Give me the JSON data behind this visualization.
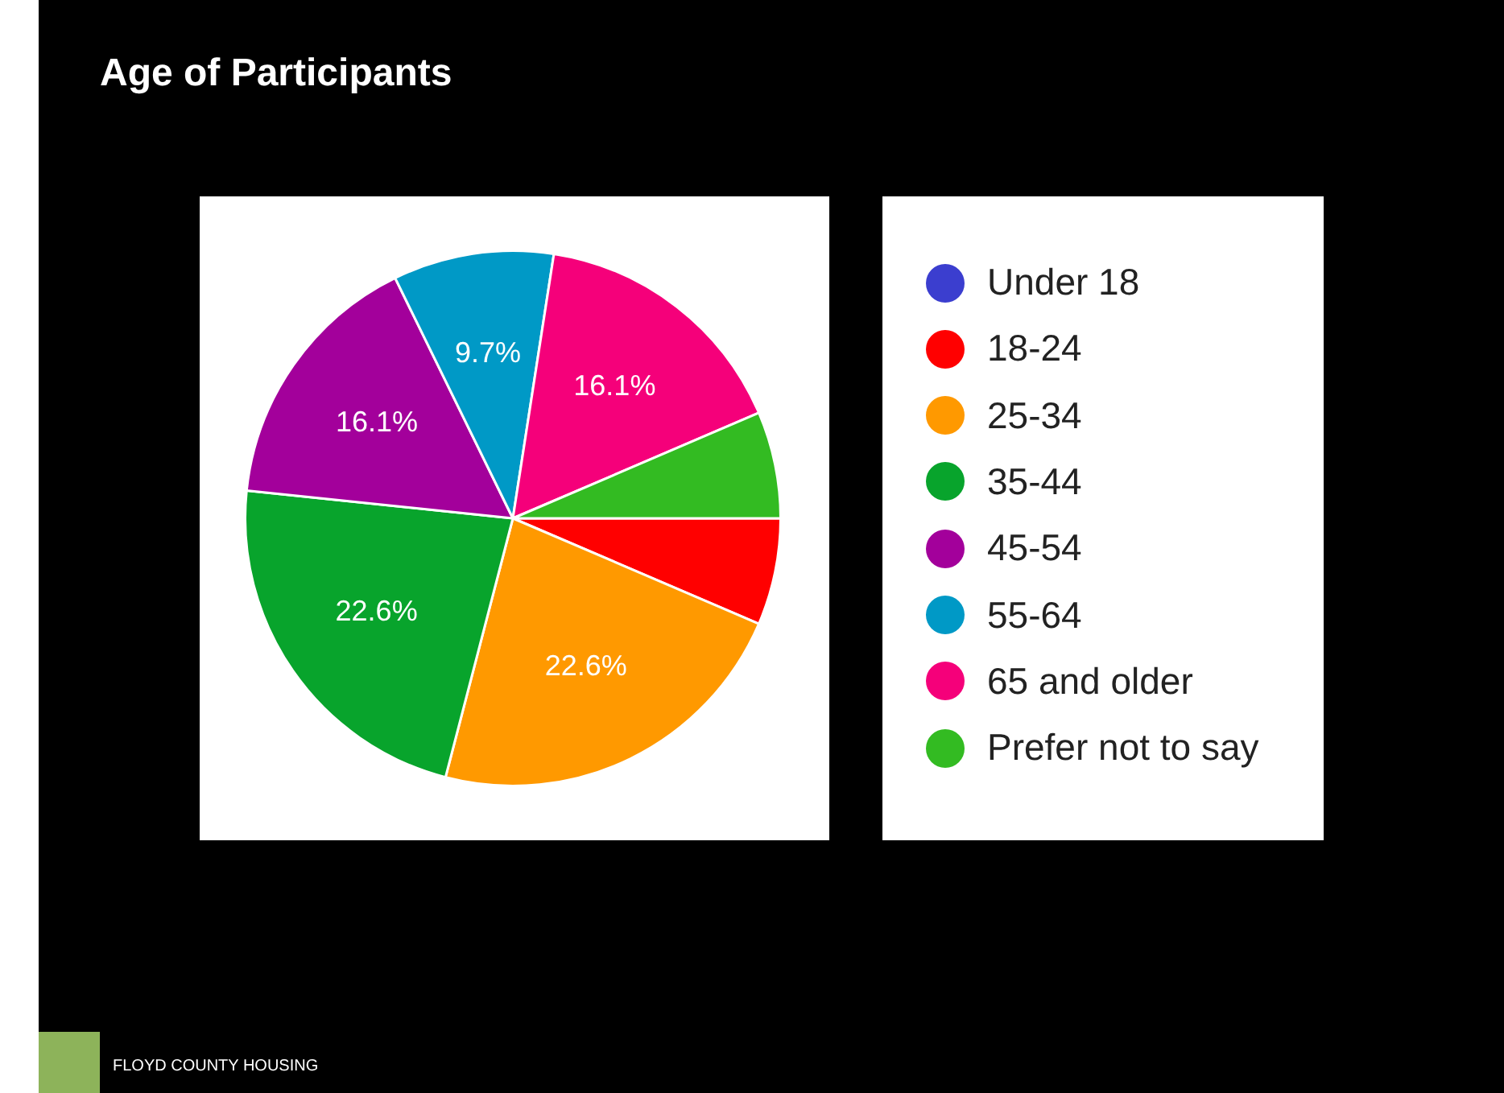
{
  "chart_data": {
    "type": "pie",
    "title": "Age of Participants",
    "categories": [
      "Under 18",
      "18-24",
      "25-34",
      "35-44",
      "45-54",
      "55-64",
      "65 and older",
      "Prefer not to say"
    ],
    "values": [
      0,
      6.45,
      22.6,
      22.6,
      16.1,
      9.7,
      16.1,
      6.45
    ],
    "colors": [
      "#3b3ecf",
      "#ff0000",
      "#ff9900",
      "#08a42c",
      "#a3009b",
      "#0099c6",
      "#f5007a",
      "#33bb22"
    ],
    "value_labels": [
      null,
      null,
      "22.6%",
      "22.6%",
      "16.1%",
      "9.7%",
      "16.1%",
      null
    ],
    "legend": "right",
    "annotations": [
      "FLOYD COUNTY HOUSING"
    ]
  }
}
